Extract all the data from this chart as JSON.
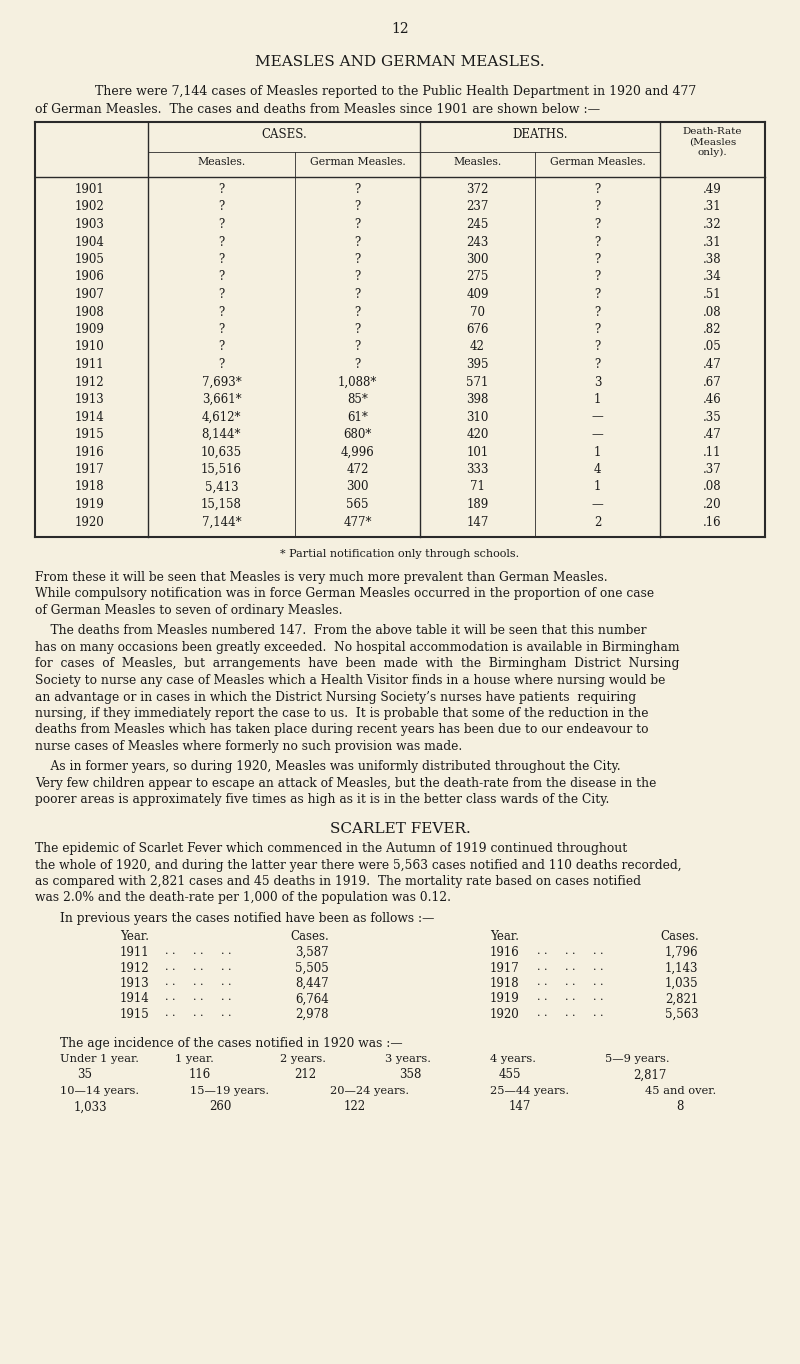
{
  "page_number": "12",
  "bg_color": "#f5f0e0",
  "text_color": "#1a1a1a",
  "title": "MEASLES AND GERMAN MEASLES.",
  "intro_line1": "There were 7,144 cases of Measles reported to the Public Health Department in 1920 and 477",
  "intro_line2": "of German Measles.  The cases and deaths from Measles since 1901 are shown below :—",
  "table_rows": [
    [
      "1901",
      "?",
      "?",
      "372",
      "?",
      ".49"
    ],
    [
      "1902",
      "?",
      "?",
      "237",
      "?",
      ".31"
    ],
    [
      "1903",
      "?",
      "?",
      "245",
      "?",
      ".32"
    ],
    [
      "1904",
      "?",
      "?",
      "243",
      "?",
      ".31"
    ],
    [
      "1905",
      "?",
      "?",
      "300",
      "?",
      ".38"
    ],
    [
      "1906",
      "?",
      "?",
      "275",
      "?",
      ".34"
    ],
    [
      "1907",
      "?",
      "?",
      "409",
      "?",
      ".51"
    ],
    [
      "1908",
      "?",
      "?",
      "70",
      "?",
      ".08"
    ],
    [
      "1909",
      "?",
      "?",
      "676",
      "?",
      ".82"
    ],
    [
      "1910",
      "?",
      "?",
      "42",
      "?",
      ".05"
    ],
    [
      "1911",
      "?",
      "?",
      "395",
      "?",
      ".47"
    ],
    [
      "1912",
      "7,693*",
      "1,088*",
      "571",
      "3",
      ".67"
    ],
    [
      "1913",
      "3,661*",
      "85*",
      "398",
      "1",
      ".46"
    ],
    [
      "1914",
      "4,612*",
      "61*",
      "310",
      "—",
      ".35"
    ],
    [
      "1915",
      "8,144*",
      "680*",
      "420",
      "—",
      ".47"
    ],
    [
      "1916",
      "10,635",
      "4,996",
      "101",
      "1",
      ".11"
    ],
    [
      "1917",
      "15,516",
      "472",
      "333",
      "4",
      ".37"
    ],
    [
      "1918",
      "5,413",
      "300",
      "71",
      "1",
      ".08"
    ],
    [
      "1919",
      "15,158",
      "565",
      "189",
      "—",
      ".20"
    ],
    [
      "1920",
      "7,144*",
      "477*",
      "147",
      "2",
      ".16"
    ]
  ],
  "footnote": "* Partial notification only through schools.",
  "para1_lines": [
    "From these it will be seen that Measles is very much more prevalent than German Measles.",
    "While compulsory notification was in force German Measles occurred in the proportion of one case",
    "of German Measles to seven of ordinary Measles."
  ],
  "para2_lines": [
    "    The deaths from Measles numbered 147.  From the above table it will be seen that this number",
    "has on many occasions been greatly exceeded.  No hospital accommodation is available in Birmingham",
    "for  cases  of  Measles,  but  arrangements  have  been  made  with  the  Birmingham  District  Nursing",
    "Society to nurse any case of Measles which a Health Visitor finds in a house where nursing would be",
    "an advantage or in cases in which the District Nursing Society’s nurses have patients  requiring",
    "nursing, if they immediately report the case to us.  It is probable that some of the reduction in the",
    "deaths from Measles which has taken place during recent years has been due to our endeavour to",
    "nurse cases of Measles where formerly no such provision was made."
  ],
  "para3_lines": [
    "    As in former years, so during 1920, Measles was uniformly distributed throughout the City.",
    "Very few children appear to escape an attack of Measles, but the death-rate from the disease in the",
    "poorer areas is approximately five times as high as it is in the better class wards of the City."
  ],
  "scarlet_title": "SCARLET FEVER.",
  "scarlet_para_lines": [
    "The epidemic of Scarlet Fever which commenced in the Autumn of 1919 continued throughout",
    "the whole of 1920, and during the latter year there were 5,563 cases notified and 110 deaths recorded,",
    "as compared with 2,821 cases and 45 deaths in 1919.  The mortality rate based on cases notified",
    "was 2.0% and the death-rate per 1,000 of the population was 0.12."
  ],
  "scarlet_intro": "In previous years the cases notified have been as follows :—",
  "scarlet_left": [
    [
      "1911",
      "3,587"
    ],
    [
      "1912",
      "5,505"
    ],
    [
      "1913",
      "8,447"
    ],
    [
      "1914",
      "6,764"
    ],
    [
      "1915",
      "2,978"
    ]
  ],
  "scarlet_right": [
    [
      "1916",
      "1,796"
    ],
    [
      "1917",
      "1,143"
    ],
    [
      "1918",
      "1,035"
    ],
    [
      "1919",
      "2,821"
    ],
    [
      "1920",
      "5,563"
    ]
  ],
  "age_intro": "The age incidence of the cases notified in 1920 was :—",
  "age_h1": [
    "Under 1 year.",
    "1 year.",
    "2 years.",
    "3 years.",
    "4 years.",
    "5—9 years."
  ],
  "age_v1": [
    "35",
    "116",
    "212",
    "358",
    "455",
    "2,817"
  ],
  "age_h2": [
    "10—14 years.",
    "15—19 years.",
    "20—24 years.",
    "25—44 years.",
    "45 and over."
  ],
  "age_v2": [
    "1,033",
    "260",
    "122",
    "147",
    "8"
  ]
}
